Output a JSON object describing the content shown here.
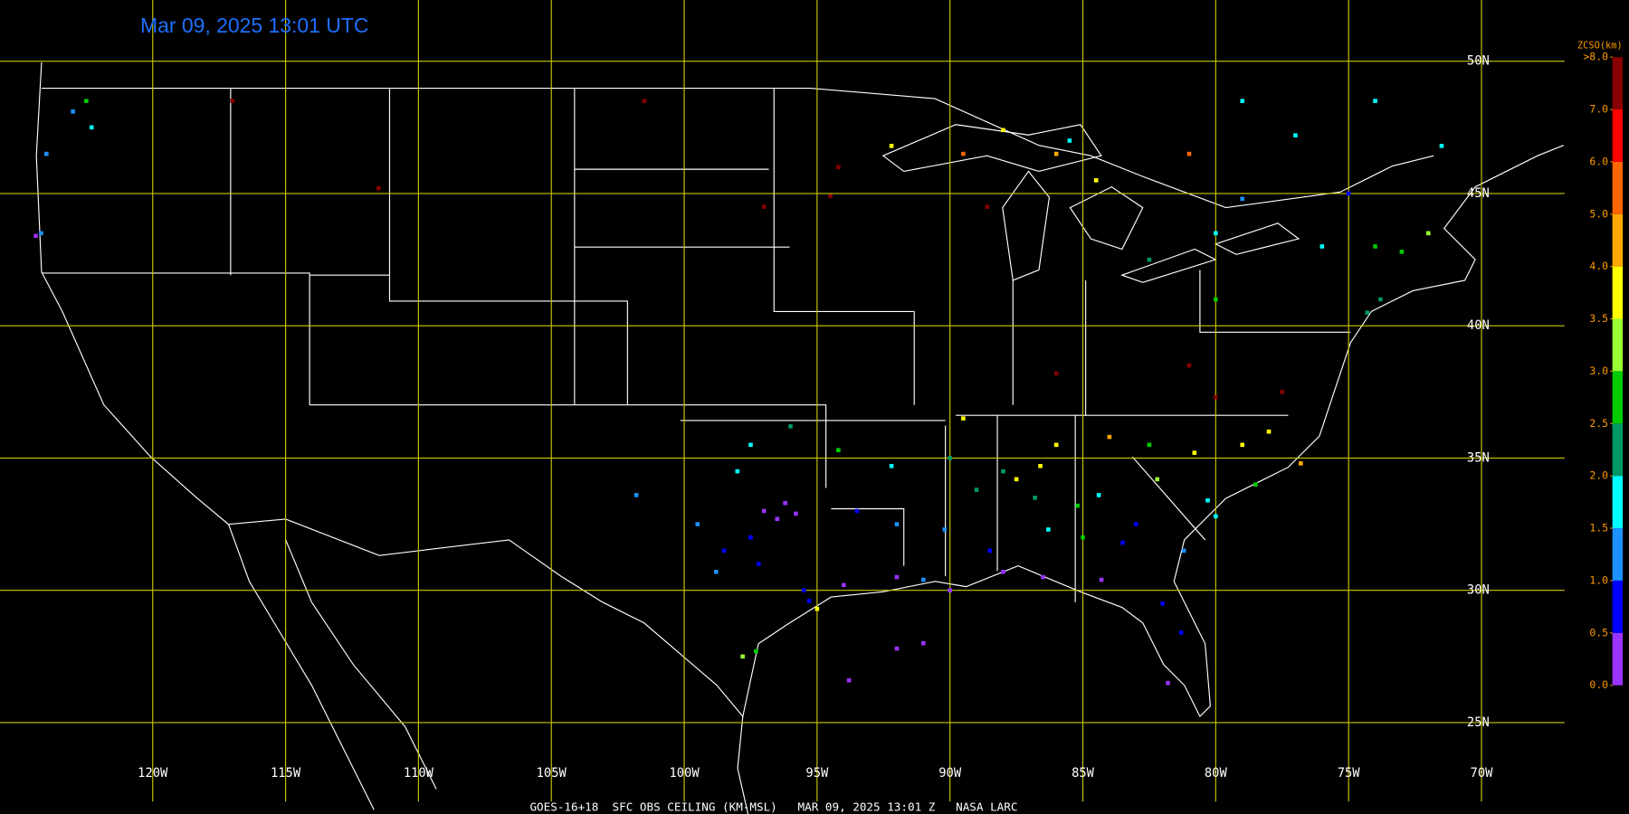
{
  "title": "Mar 09, 2025 13:01 UTC",
  "footer": "GOES-16+18  SFC OBS CEILING (KM-MSL)   MAR 09, 2025 13:01 Z   NASA LARC",
  "grid": {
    "lat": [
      {
        "value": 50,
        "label": "50N"
      },
      {
        "value": 45,
        "label": "45N"
      },
      {
        "value": 40,
        "label": "40N"
      },
      {
        "value": 35,
        "label": "35N"
      },
      {
        "value": 30,
        "label": "30N"
      },
      {
        "value": 25,
        "label": "25N"
      }
    ],
    "lon": [
      {
        "value": -120,
        "label": "120W"
      },
      {
        "value": -115,
        "label": "115W"
      },
      {
        "value": -110,
        "label": "110W"
      },
      {
        "value": -105,
        "label": "105W"
      },
      {
        "value": -100,
        "label": "100W"
      },
      {
        "value": -95,
        "label": "95W"
      },
      {
        "value": -90,
        "label": "90W"
      },
      {
        "value": -85,
        "label": "85W"
      },
      {
        "value": -80,
        "label": "80W"
      },
      {
        "value": -75,
        "label": "75W"
      },
      {
        "value": -70,
        "label": "70W"
      }
    ],
    "color": "#c8c800"
  },
  "colorbar": {
    "title": "ZCSO(km)",
    "ticks": [
      {
        "value": 0,
        "label": "0.0"
      },
      {
        "value": 0.5,
        "label": "0.5"
      },
      {
        "value": 1,
        "label": "1.0"
      },
      {
        "value": 1.5,
        "label": "1.5"
      },
      {
        "value": 2,
        "label": "2.0"
      },
      {
        "value": 2.5,
        "label": "2.5"
      },
      {
        "value": 3,
        "label": "3.0"
      },
      {
        "value": 3.5,
        "label": "3.5"
      },
      {
        "value": 4,
        "label": "4.0"
      },
      {
        "value": 5,
        "label": "5.0"
      },
      {
        "value": 6,
        "label": "6.0"
      },
      {
        "value": 7,
        "label": "7.0"
      },
      {
        "value": 8,
        "label": ">8.0"
      }
    ],
    "colors": [
      "#9933ff",
      "#0000ff",
      "#1e90ff",
      "#00ffff",
      "#009966",
      "#00cc00",
      "#99ff33",
      "#ffff00",
      "#ffaa00",
      "#ff6600",
      "#ff0000",
      "#880000"
    ]
  },
  "stations": {
    "lon": [
      -122.3,
      -122.5,
      -123,
      -124,
      -124.2,
      -124.4,
      -117,
      -111.5,
      -101.5,
      -97,
      -94.2,
      -97,
      -96.5,
      -97.5,
      -98.5,
      -95.5,
      -95.3,
      -94,
      -92,
      -91,
      -90,
      -88,
      -86.5,
      -84.3,
      -82,
      -81.3,
      -81.8,
      -81.2,
      -83,
      -85,
      -84.4,
      -86.8,
      -86.6,
      -88,
      -90,
      -89.5,
      -92.2,
      -94.2,
      -96,
      -97.5,
      -98,
      -99.5,
      -101.8,
      -93.5,
      -92,
      -90.2,
      -88.5,
      -86.3,
      -86,
      -84,
      -82.5,
      -80.8,
      -79,
      -78.5,
      -80,
      -76.8,
      -78,
      -77.5,
      -80,
      -81,
      -76,
      -74,
      -73,
      -72,
      -73.8,
      -75,
      -79,
      -80,
      -80,
      -82.5,
      -84.5,
      -85.5,
      -86,
      -88,
      -89.5,
      -92.2,
      -94.5,
      -88.6,
      -79,
      -81,
      -77,
      -74,
      -71.5,
      -74.3,
      -86,
      -97.3,
      -97.8,
      -95,
      -91,
      -92,
      -93.8,
      -96.2,
      -95.8,
      -97.2,
      -98.8,
      -89,
      -87.5,
      -85.2,
      -83.5,
      -82.2,
      -80.3
    ],
    "lat": [
      47.5,
      48.5,
      48.1,
      46.5,
      43.5,
      43.4,
      48.5,
      45.2,
      48.5,
      44.5,
      46,
      33,
      32.7,
      32,
      31.5,
      30,
      29.6,
      30.2,
      30.5,
      30.4,
      30,
      30.7,
      30.5,
      30.4,
      29.5,
      28.4,
      26.5,
      31.5,
      32.5,
      32,
      33.6,
      33.5,
      34.7,
      34.5,
      35,
      36.5,
      34.7,
      35.3,
      36.2,
      35.5,
      34.5,
      32.5,
      33.6,
      33,
      32.5,
      32.3,
      31.5,
      32.3,
      35.5,
      35.8,
      35.5,
      35.2,
      35.5,
      34,
      32.8,
      34.8,
      36,
      37.5,
      37.3,
      38.5,
      43,
      43,
      42.8,
      43.5,
      41,
      45,
      44.8,
      43.5,
      41,
      42.5,
      45.5,
      47,
      46.5,
      47.4,
      46.5,
      46.8,
      44.9,
      44.5,
      48.5,
      46.5,
      47.2,
      48.5,
      46.8,
      40.5,
      38.2,
      27.7,
      27.5,
      29.3,
      28,
      27.8,
      26.6,
      33.3,
      32.9,
      31,
      30.7,
      33.8,
      34.2,
      33.2,
      31.8,
      34.2,
      33.4
    ],
    "values": [
      1.5,
      2.5,
      1,
      1,
      1,
      0.3,
      8.5,
      8.5,
      8.5,
      7.5,
      7.5,
      0.3,
      0.2,
      0.8,
      0.7,
      0.8,
      0.7,
      0.3,
      0.3,
      1.2,
      0.3,
      0.4,
      0.3,
      0.2,
      0.8,
      0.5,
      0.3,
      1.3,
      0.8,
      2.7,
      1.7,
      2.3,
      3.7,
      2.2,
      2.3,
      3.8,
      1.8,
      2.7,
      2.2,
      1.8,
      1.5,
      1.3,
      1.3,
      0.8,
      1.2,
      1.3,
      0.8,
      1.8,
      3.8,
      4.5,
      2.7,
      3.8,
      3.7,
      2.8,
      1.8,
      4.5,
      3.8,
      7.5,
      7.8,
      8.5,
      1.5,
      2.7,
      2.5,
      3.3,
      2.2,
      0.8,
      1,
      1.5,
      2.5,
      2.3,
      3.7,
      1.8,
      4.5,
      3.5,
      5.5,
      3.7,
      7.8,
      7.5,
      1.5,
      5.5,
      1.5,
      1.5,
      1.5,
      2.3,
      7.5,
      2.8,
      3.2,
      3.6,
      0.3,
      0.3,
      0.3,
      0.2,
      0.3,
      0.8,
      1.3,
      2.2,
      3.8,
      2.6,
      0.8,
      3.2,
      1.8
    ]
  }
}
